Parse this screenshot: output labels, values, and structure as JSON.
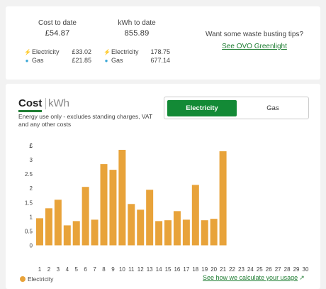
{
  "summary": {
    "cost": {
      "title": "Cost to date",
      "total": "£54.87",
      "rows": [
        {
          "icon": "lightning-icon",
          "label": "Electricity",
          "value": "£33.02"
        },
        {
          "icon": "gas-drop-icon",
          "label": "Gas",
          "value": "£21.85"
        }
      ]
    },
    "kwh": {
      "title": "kWh to date",
      "total": "855.89",
      "rows": [
        {
          "icon": "lightning-icon",
          "label": "Electricity",
          "value": "178.75"
        },
        {
          "icon": "gas-drop-icon",
          "label": "Gas",
          "value": "677.14"
        }
      ]
    },
    "tips": {
      "text": "Want some waste busting tips?",
      "link": "See OVO Greenlight"
    }
  },
  "usage": {
    "tabs": {
      "cost": "Cost",
      "kwh": "kWh"
    },
    "subtitle": "Energy use only - excludes standing charges, VAT and any other costs",
    "toggle": {
      "electricity": "Electricity",
      "gas": "Gas"
    },
    "legend": "Electricity",
    "how_link": "See how we calculate your usage",
    "colors": {
      "bar": "#e8a33a",
      "accent": "#138a36",
      "link": "#1e7d32"
    }
  },
  "chart_data": {
    "type": "bar",
    "ylabel": "£",
    "ylim": [
      0,
      3.5
    ],
    "yticks": [
      0,
      0.5,
      1,
      1.5,
      2,
      2.5,
      3
    ],
    "categories": [
      "1",
      "2",
      "3",
      "4",
      "5",
      "6",
      "7",
      "8",
      "9",
      "10",
      "11",
      "12",
      "13",
      "14",
      "15",
      "16",
      "17",
      "18",
      "19",
      "20",
      "21",
      "22",
      "23",
      "24",
      "25",
      "26",
      "27",
      "28",
      "29",
      "30"
    ],
    "series": [
      {
        "name": "Electricity",
        "values": [
          0.95,
          1.3,
          1.6,
          0.7,
          0.85,
          2.05,
          0.9,
          2.85,
          2.65,
          3.35,
          1.45,
          1.25,
          1.95,
          0.85,
          0.88,
          1.2,
          0.9,
          2.12,
          0.88,
          0.93,
          3.3,
          null,
          null,
          null,
          null,
          null,
          null,
          null,
          null,
          null
        ]
      }
    ],
    "grid": false,
    "legend": "bottom-left"
  }
}
